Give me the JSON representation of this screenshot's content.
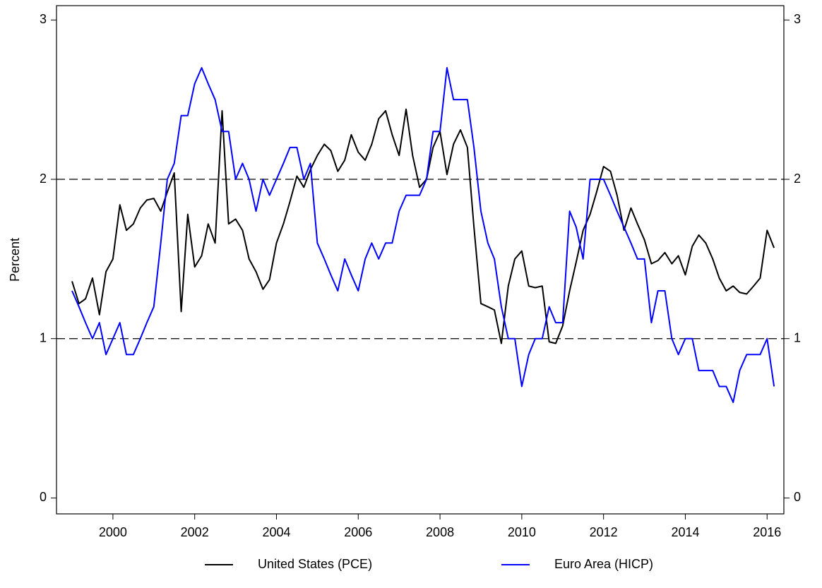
{
  "chart_data": {
    "type": "line",
    "ylabel": "Percent",
    "x": [
      1999,
      1999.17,
      1999.33,
      1999.5,
      1999.67,
      1999.83,
      2000,
      2000.17,
      2000.33,
      2000.5,
      2000.67,
      2000.83,
      2001,
      2001.17,
      2001.33,
      2001.5,
      2001.67,
      2001.83,
      2002,
      2002.17,
      2002.33,
      2002.5,
      2002.67,
      2002.83,
      2003,
      2003.17,
      2003.33,
      2003.5,
      2003.67,
      2003.83,
      2004,
      2004.17,
      2004.33,
      2004.5,
      2004.67,
      2004.83,
      2005,
      2005.17,
      2005.33,
      2005.5,
      2005.67,
      2005.83,
      2006,
      2006.17,
      2006.33,
      2006.5,
      2006.67,
      2006.83,
      2007,
      2007.17,
      2007.33,
      2007.5,
      2007.67,
      2007.83,
      2008,
      2008.17,
      2008.33,
      2008.5,
      2008.67,
      2008.83,
      2009,
      2009.17,
      2009.33,
      2009.5,
      2009.67,
      2009.83,
      2010,
      2010.17,
      2010.33,
      2010.5,
      2010.67,
      2010.83,
      2011,
      2011.17,
      2011.33,
      2011.5,
      2011.67,
      2011.83,
      2012,
      2012.17,
      2012.33,
      2012.5,
      2012.67,
      2012.83,
      2013,
      2013.17,
      2013.33,
      2013.5,
      2013.67,
      2013.83,
      2014,
      2014.17,
      2014.33,
      2014.5,
      2014.67,
      2014.83,
      2015,
      2015.17,
      2015.33,
      2015.5,
      2015.67,
      2015.83,
      2016,
      2016.17
    ],
    "series": [
      {
        "name": "United States (PCE)",
        "color": "#000000",
        "values": [
          1.36,
          1.22,
          1.25,
          1.38,
          1.15,
          1.42,
          1.5,
          1.84,
          1.68,
          1.72,
          1.82,
          1.87,
          1.88,
          1.8,
          1.92,
          2.04,
          1.17,
          1.78,
          1.45,
          1.52,
          1.72,
          1.6,
          2.43,
          1.72,
          1.75,
          1.68,
          1.5,
          1.42,
          1.31,
          1.37,
          1.6,
          1.72,
          1.86,
          2.02,
          1.95,
          2.06,
          2.15,
          2.22,
          2.18,
          2.05,
          2.12,
          2.28,
          2.17,
          2.12,
          2.22,
          2.38,
          2.43,
          2.28,
          2.15,
          2.44,
          2.15,
          1.95,
          2.0,
          2.2,
          2.3,
          2.03,
          2.22,
          2.31,
          2.2,
          1.7,
          1.22,
          1.2,
          1.18,
          0.97,
          1.33,
          1.5,
          1.55,
          1.33,
          1.32,
          1.33,
          0.98,
          0.97,
          1.08,
          1.3,
          1.48,
          1.68,
          1.78,
          1.92,
          2.08,
          2.05,
          1.9,
          1.68,
          1.82,
          1.72,
          1.62,
          1.47,
          1.49,
          1.54,
          1.47,
          1.52,
          1.4,
          1.58,
          1.65,
          1.6,
          1.5,
          1.38,
          1.3,
          1.33,
          1.29,
          1.28,
          1.33,
          1.38,
          1.68,
          1.57
        ]
      },
      {
        "name": "Euro Area (HICP)",
        "color": "#0000ff",
        "values": [
          1.3,
          1.2,
          1.1,
          1.0,
          1.1,
          0.9,
          1.0,
          1.1,
          0.9,
          0.9,
          1.0,
          1.1,
          1.2,
          1.6,
          2.0,
          2.1,
          2.4,
          2.4,
          2.6,
          2.7,
          2.6,
          2.5,
          2.3,
          2.3,
          2.0,
          2.1,
          2.0,
          1.8,
          2.0,
          1.9,
          2.0,
          2.1,
          2.2,
          2.2,
          2.0,
          2.1,
          1.6,
          1.5,
          1.4,
          1.3,
          1.5,
          1.4,
          1.3,
          1.5,
          1.6,
          1.5,
          1.6,
          1.6,
          1.8,
          1.9,
          1.9,
          1.9,
          2.0,
          2.3,
          2.3,
          2.7,
          2.5,
          2.5,
          2.5,
          2.2,
          1.8,
          1.6,
          1.5,
          1.2,
          1.0,
          1.0,
          0.7,
          0.9,
          1.0,
          1.0,
          1.2,
          1.1,
          1.1,
          1.8,
          1.7,
          1.5,
          2.0,
          2.0,
          2.0,
          1.9,
          1.8,
          1.7,
          1.6,
          1.5,
          1.5,
          1.1,
          1.3,
          1.3,
          1.0,
          0.9,
          1.0,
          1.0,
          0.8,
          0.8,
          0.8,
          0.7,
          0.7,
          0.6,
          0.8,
          0.9,
          0.9,
          0.9,
          1.0,
          0.7
        ]
      }
    ],
    "xlim": [
      1998.62,
      2016.41
    ],
    "xticks": [
      2000,
      2002,
      2004,
      2006,
      2008,
      2010,
      2012,
      2014,
      2016
    ],
    "ylim": [
      -0.1,
      3.09
    ],
    "yticks": [
      0,
      1,
      2,
      3
    ],
    "y2lim": [
      -0.1,
      3.09
    ],
    "y2ticks": [
      0,
      1,
      2,
      3
    ],
    "reference_lines": [
      1,
      2
    ],
    "legend": "bottom"
  }
}
